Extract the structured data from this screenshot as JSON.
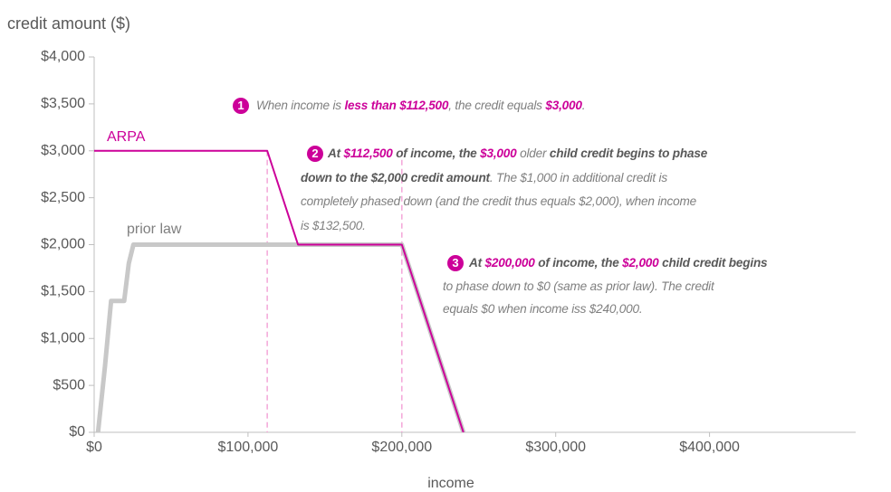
{
  "chart_data": {
    "type": "line",
    "y_axis_label": "credit amount ($)",
    "x_axis_label": "income",
    "xlim": [
      0,
      495000
    ],
    "ylim": [
      0,
      4000
    ],
    "xticks": [
      {
        "value": 0,
        "label": "$0"
      },
      {
        "value": 100000,
        "label": "$100,000"
      },
      {
        "value": 200000,
        "label": "$200,000"
      },
      {
        "value": 300000,
        "label": "$300,000"
      },
      {
        "value": 400000,
        "label": "$400,000"
      }
    ],
    "yticks": [
      {
        "value": 0,
        "label": "$0"
      },
      {
        "value": 500,
        "label": "$500"
      },
      {
        "value": 1000,
        "label": "$1,000"
      },
      {
        "value": 1500,
        "label": "$1,500"
      },
      {
        "value": 2000,
        "label": "$2,000"
      },
      {
        "value": 2500,
        "label": "$2,500"
      },
      {
        "value": 3000,
        "label": "$3,000"
      },
      {
        "value": 3500,
        "label": "$3,500"
      },
      {
        "value": 4000,
        "label": "$4,000"
      }
    ],
    "reference_lines": [
      112500,
      200000
    ],
    "reference_color": "#f4a6d8",
    "series": [
      {
        "name": "prior law",
        "color": "#c8c8c8",
        "x": [
          2500,
          7000,
          11000,
          19500,
          22500,
          25500,
          200000,
          240000
        ],
        "values": [
          0,
          700,
          1400,
          1400,
          1800,
          2000,
          2000,
          0
        ]
      },
      {
        "name": "ARPA",
        "color": "#cc0099",
        "x": [
          0,
          112500,
          132500,
          200000,
          240000
        ],
        "values": [
          3000,
          3000,
          2000,
          2000,
          0
        ]
      }
    ],
    "annotations": [
      {
        "number": "1",
        "lines": [
          [
            {
              "text": "When income is ",
              "style": "gray"
            },
            {
              "text": "less than $112,500",
              "style": "magenta"
            },
            {
              "text": ", the credit equals ",
              "style": "gray"
            },
            {
              "text": "$3,000",
              "style": "magenta"
            },
            {
              "text": ".",
              "style": "gray"
            }
          ]
        ]
      },
      {
        "number": "2",
        "lines": [
          [
            {
              "text": "At ",
              "style": "dark"
            },
            {
              "text": "$112,500",
              "style": "magenta"
            },
            {
              "text": " of income, the ",
              "style": "dark"
            },
            {
              "text": "$3,000",
              "style": "magenta"
            },
            {
              "text": " older ",
              "style": "gray"
            },
            {
              "text": "child credit begins to phase",
              "style": "dark"
            }
          ],
          [
            {
              "text": "down to the $2,000 credit amount",
              "style": "dark"
            },
            {
              "text": ". The $1,000 in additional credit is",
              "style": "gray"
            }
          ],
          [
            {
              "text": "completely phased down (and the credit thus equals $2,000), when income",
              "style": "gray"
            }
          ],
          [
            {
              "text": "is $132,500.",
              "style": "gray"
            }
          ]
        ]
      },
      {
        "number": "3",
        "lines": [
          [
            {
              "text": "At ",
              "style": "dark"
            },
            {
              "text": "$200,000",
              "style": "magenta"
            },
            {
              "text": " of income, the ",
              "style": "dark"
            },
            {
              "text": "$2,000",
              "style": "magenta"
            },
            {
              "text": " child credit begins",
              "style": "dark"
            }
          ],
          [
            {
              "text": "to phase down to $0 (same as prior law). The credit",
              "style": "gray"
            }
          ],
          [
            {
              "text": "equals $0 when income iss $240,000.",
              "style": "gray"
            }
          ]
        ]
      }
    ]
  }
}
